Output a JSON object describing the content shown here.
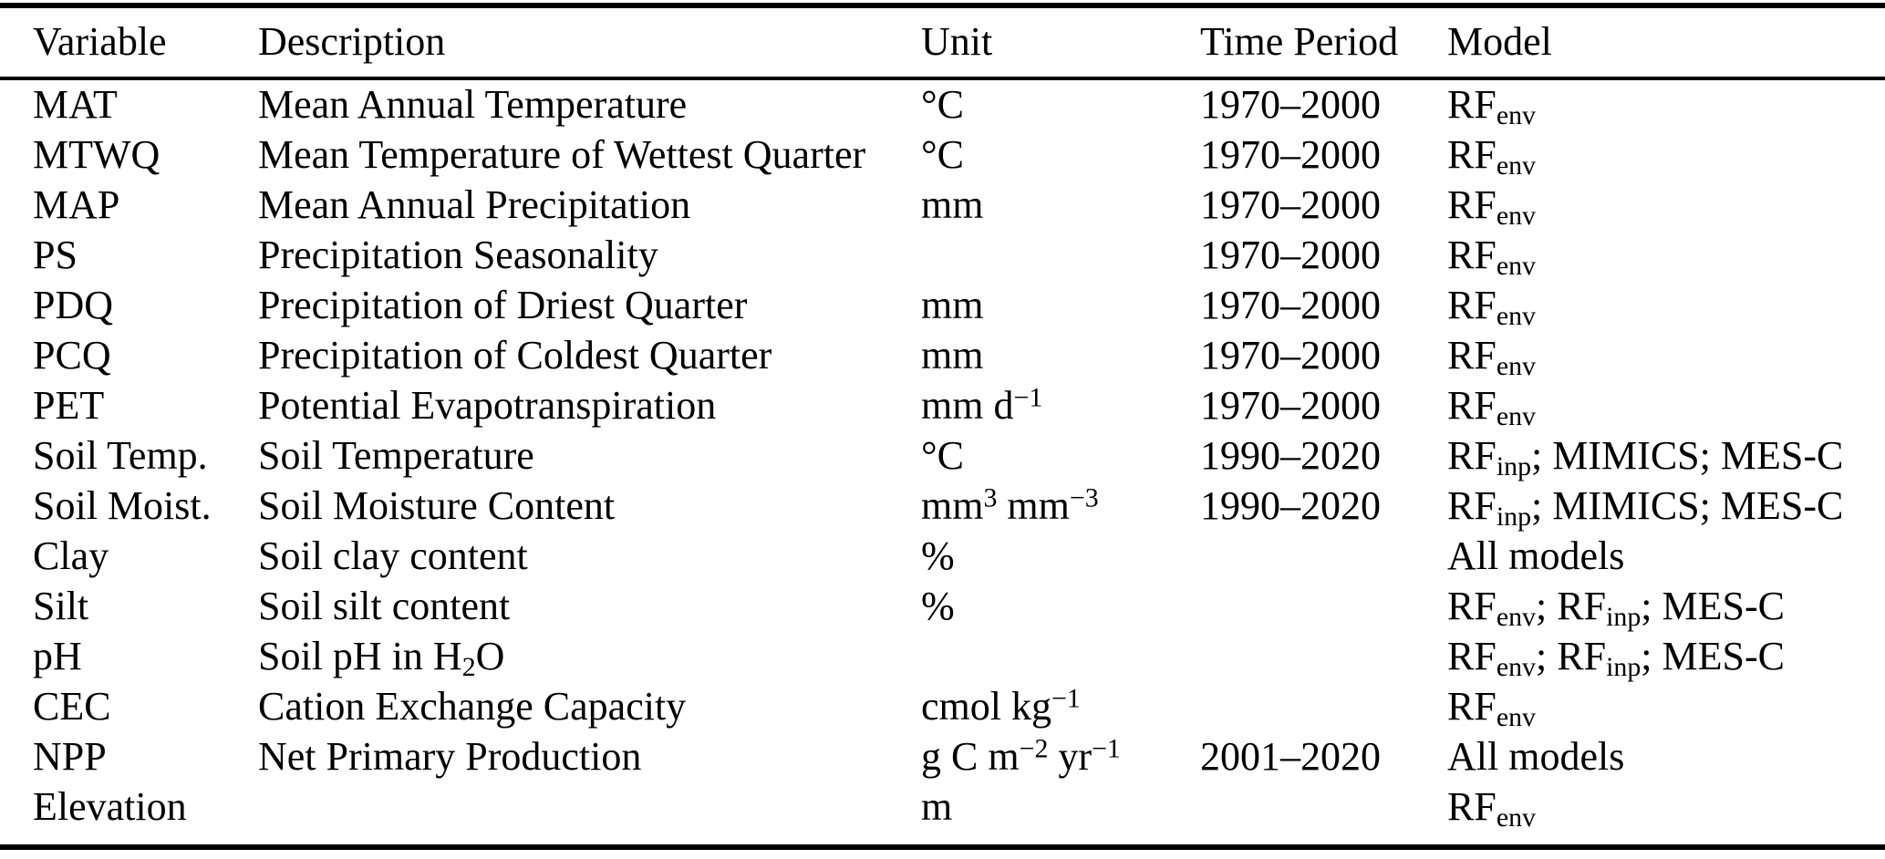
{
  "colors": {
    "text": "#000000",
    "background": "#ffffff",
    "rule": "#000000"
  },
  "table": {
    "columns": [
      {
        "key": "variable",
        "label": "Variable"
      },
      {
        "key": "description",
        "label": "Description"
      },
      {
        "key": "unit",
        "label": "Unit"
      },
      {
        "key": "time_period",
        "label": "Time Period"
      },
      {
        "key": "model",
        "label": "Model"
      }
    ],
    "rows": [
      {
        "variable": "MAT",
        "description": "Mean Annual Temperature",
        "unit": "°C",
        "time_period": "1970–2000",
        "model": [
          {
            "t": "RF"
          },
          {
            "t": "env",
            "sub": true
          }
        ]
      },
      {
        "variable": "MTWQ",
        "description": "Mean Temperature of Wettest Quarter",
        "unit": "°C",
        "time_period": "1970–2000",
        "model": [
          {
            "t": "RF"
          },
          {
            "t": "env",
            "sub": true
          }
        ]
      },
      {
        "variable": "MAP",
        "description": "Mean Annual Precipitation",
        "unit": "mm",
        "time_period": "1970–2000",
        "model": [
          {
            "t": "RF"
          },
          {
            "t": "env",
            "sub": true
          }
        ]
      },
      {
        "variable": "PS",
        "description": "Precipitation Seasonality",
        "unit": "",
        "time_period": "1970–2000",
        "model": [
          {
            "t": "RF"
          },
          {
            "t": "env",
            "sub": true
          }
        ]
      },
      {
        "variable": "PDQ",
        "description": "Precipitation of Driest Quarter",
        "unit": "mm",
        "time_period": "1970–2000",
        "model": [
          {
            "t": "RF"
          },
          {
            "t": "env",
            "sub": true
          }
        ]
      },
      {
        "variable": "PCQ",
        "description": "Precipitation of Coldest Quarter",
        "unit": "mm",
        "time_period": "1970–2000",
        "model": [
          {
            "t": "RF"
          },
          {
            "t": "env",
            "sub": true
          }
        ]
      },
      {
        "variable": "PET",
        "description": "Potential Evapotranspiration",
        "unit": [
          {
            "t": "mm d"
          },
          {
            "t": "−1",
            "sup": true
          }
        ],
        "time_period": "1970–2000",
        "model": [
          {
            "t": "RF"
          },
          {
            "t": "env",
            "sub": true
          }
        ]
      },
      {
        "variable": "Soil Temp.",
        "description": "Soil Temperature",
        "unit": "°C",
        "time_period": "1990–2020",
        "model": [
          {
            "t": "RF"
          },
          {
            "t": "inp",
            "sub": true
          },
          {
            "t": "; MIMICS; MES-C"
          }
        ]
      },
      {
        "variable": "Soil Moist.",
        "description": "Soil Moisture Content",
        "unit": [
          {
            "t": "mm"
          },
          {
            "t": "3",
            "sup": true
          },
          {
            "t": " mm"
          },
          {
            "t": "−3",
            "sup": true
          }
        ],
        "time_period": "1990–2020",
        "model": [
          {
            "t": "RF"
          },
          {
            "t": "inp",
            "sub": true
          },
          {
            "t": "; MIMICS; MES-C"
          }
        ]
      },
      {
        "variable": "Clay",
        "description": "Soil clay content",
        "unit": "%",
        "time_period": "",
        "model": "All models"
      },
      {
        "variable": "Silt",
        "description": "Soil silt content",
        "unit": "%",
        "time_period": "",
        "model": [
          {
            "t": "RF"
          },
          {
            "t": "env",
            "sub": true
          },
          {
            "t": "; RF"
          },
          {
            "t": "inp",
            "sub": true
          },
          {
            "t": "; MES-C"
          }
        ]
      },
      {
        "variable": "pH",
        "description": [
          {
            "t": "Soil pH in H"
          },
          {
            "t": "2",
            "sub": true
          },
          {
            "t": "O"
          }
        ],
        "unit": "",
        "time_period": "",
        "model": [
          {
            "t": "RF"
          },
          {
            "t": "env",
            "sub": true
          },
          {
            "t": "; RF"
          },
          {
            "t": "inp",
            "sub": true
          },
          {
            "t": "; MES-C"
          }
        ]
      },
      {
        "variable": "CEC",
        "description": "Cation Exchange Capacity",
        "unit": [
          {
            "t": "cmol kg"
          },
          {
            "t": "−1",
            "sup": true
          }
        ],
        "time_period": "",
        "model": [
          {
            "t": "RF"
          },
          {
            "t": "env",
            "sub": true
          }
        ]
      },
      {
        "variable": "NPP",
        "description": "Net Primary Production",
        "unit": [
          {
            "t": "g C m"
          },
          {
            "t": "−2",
            "sup": true
          },
          {
            "t": " yr"
          },
          {
            "t": "−1",
            "sup": true
          }
        ],
        "time_period": "2001–2020",
        "model": "All models"
      },
      {
        "variable": "Elevation",
        "description": "",
        "unit": "m",
        "time_period": "",
        "model": [
          {
            "t": "RF"
          },
          {
            "t": "env",
            "sub": true
          }
        ]
      }
    ]
  }
}
